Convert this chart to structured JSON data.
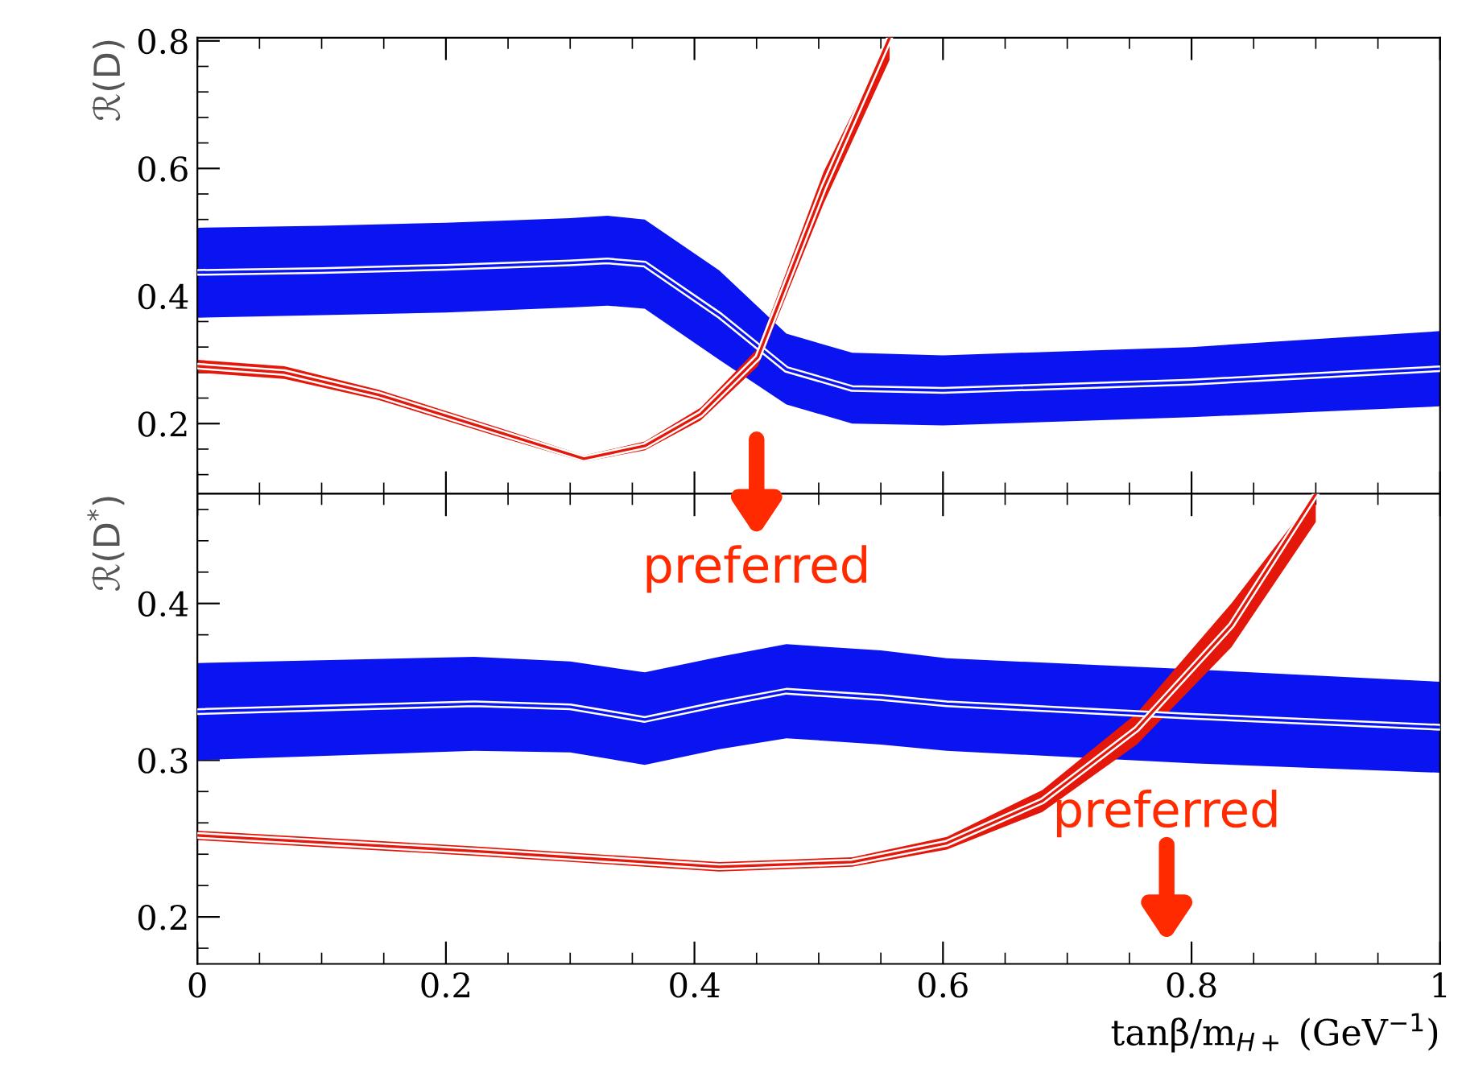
{
  "chart_data": [
    {
      "type": "line",
      "ylabel": "ℛ(D)",
      "xlim": [
        0,
        1
      ],
      "xticks": [
        0,
        0.2,
        0.4,
        0.6,
        0.8,
        1
      ],
      "ylim": [
        0.09,
        0.805
      ],
      "yticks": [
        0.2,
        0.4,
        0.6,
        0.8
      ],
      "tick_labels": "y",
      "series": [
        {
          "color": "#0a14f0",
          "x": [
            0,
            0.1,
            0.2,
            0.3,
            0.33,
            0.36,
            0.42,
            0.474,
            0.527,
            0.6,
            0.8,
            1.0
          ],
          "values": [
            0.437,
            0.44,
            0.445,
            0.452,
            0.455,
            0.45,
            0.37,
            0.285,
            0.255,
            0.252,
            0.265,
            0.286
          ],
          "lower": [
            0.366,
            0.37,
            0.374,
            0.382,
            0.385,
            0.38,
            0.3,
            0.23,
            0.2,
            0.197,
            0.21,
            0.227
          ],
          "upper": [
            0.507,
            0.51,
            0.515,
            0.522,
            0.526,
            0.52,
            0.44,
            0.341,
            0.311,
            0.307,
            0.32,
            0.345
          ]
        },
        {
          "color": "#e3170a",
          "x": [
            0,
            0.07,
            0.146,
            0.245,
            0.311,
            0.36,
            0.405,
            0.451,
            0.504,
            0.557
          ],
          "values": [
            0.29,
            0.28,
            0.245,
            0.185,
            0.145,
            0.165,
            0.215,
            0.304,
            0.57,
            0.805
          ],
          "lower": [
            0.28,
            0.27,
            0.237,
            0.178,
            0.14,
            0.158,
            0.205,
            0.29,
            0.545,
            0.77
          ],
          "upper": [
            0.3,
            0.29,
            0.253,
            0.192,
            0.15,
            0.172,
            0.225,
            0.318,
            0.595,
            0.805
          ]
        }
      ]
    },
    {
      "type": "line",
      "ylabel": "ℛ(D$^{*}$)",
      "xlabel": "tanβ/m$_{H+}$ (GeV$^{−1}$)",
      "xlim": [
        0,
        1
      ],
      "xticks": [
        0,
        0.2,
        0.4,
        0.6,
        0.8,
        1
      ],
      "ylim": [
        0.17,
        0.47
      ],
      "yticks": [
        0.2,
        0.3,
        0.4
      ],
      "series": [
        {
          "color": "#0a14f0",
          "x": [
            0,
            0.223,
            0.3,
            0.36,
            0.42,
            0.474,
            0.55,
            0.603,
            0.8,
            1.0
          ],
          "values": [
            0.331,
            0.336,
            0.334,
            0.326,
            0.336,
            0.344,
            0.34,
            0.336,
            0.328,
            0.321
          ],
          "lower": [
            0.3,
            0.306,
            0.305,
            0.297,
            0.307,
            0.314,
            0.31,
            0.306,
            0.298,
            0.292
          ],
          "upper": [
            0.362,
            0.366,
            0.363,
            0.356,
            0.366,
            0.374,
            0.37,
            0.365,
            0.358,
            0.35
          ]
        },
        {
          "color": "#e3170a",
          "x": [
            0,
            0.223,
            0.42,
            0.527,
            0.603,
            0.68,
            0.756,
            0.832,
            0.9
          ],
          "values": [
            0.252,
            0.242,
            0.232,
            0.235,
            0.247,
            0.274,
            0.32,
            0.386,
            0.47
          ],
          "lower": [
            0.249,
            0.239,
            0.229,
            0.232,
            0.243,
            0.267,
            0.31,
            0.372,
            0.452
          ],
          "upper": [
            0.255,
            0.245,
            0.235,
            0.238,
            0.251,
            0.281,
            0.33,
            0.4,
            0.47
          ]
        }
      ],
      "annotations": [
        "preferred",
        "preferred"
      ]
    }
  ]
}
